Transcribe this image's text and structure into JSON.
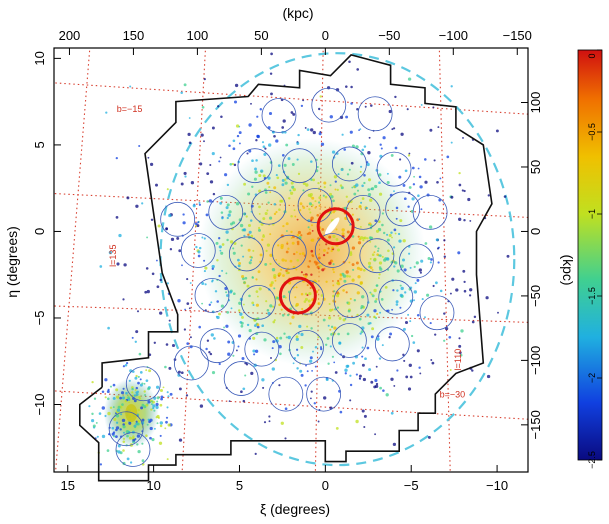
{
  "chart_data": {
    "type": "scatter",
    "top_axis": {
      "label": "(kpc)",
      "ticks": [
        "200",
        "150",
        "100",
        "50",
        "0",
        "−50",
        "−100",
        "−150"
      ],
      "tick_values": [
        200,
        150,
        100,
        50,
        0,
        -50,
        -100,
        -150
      ]
    },
    "bottom_axis": {
      "label": "ξ (degrees)",
      "ticks": [
        "15",
        "10",
        "5",
        "0",
        "−5",
        "−10"
      ],
      "tick_values": [
        15,
        10,
        5,
        0,
        -5,
        -10
      ],
      "xlim": [
        15.8,
        -11.8
      ]
    },
    "left_axis": {
      "label": "η (degrees)",
      "ticks": [
        "10",
        "5",
        "0",
        "−5",
        "−10"
      ],
      "tick_values": [
        10,
        5,
        0,
        -5,
        -10
      ],
      "ylim": [
        -13.9,
        10.6
      ]
    },
    "right_axis": {
      "label": "(kpc)",
      "ticks": [
        "100",
        "50",
        "0",
        "−50",
        "−100",
        "−150"
      ],
      "tick_values": [
        100,
        50,
        0,
        -50,
        -100,
        -150
      ]
    },
    "colorbar": {
      "label": "(kpc)",
      "ticks": [
        "0",
        "−0.5",
        "−1",
        "−1.5",
        "−2",
        "−2.5"
      ],
      "tick_values": [
        0,
        -0.5,
        -1,
        -1.5,
        -2,
        -2.5
      ],
      "range": [
        -2.5,
        0
      ],
      "colors": [
        "#0a0a80",
        "#1040e0",
        "#20b0e0",
        "#40d090",
        "#c0e020",
        "#f0c000",
        "#f07000",
        "#d01010"
      ]
    },
    "grid_labels": [
      "b=−15",
      "b=−30",
      "l=135",
      "l=110"
    ],
    "galactic_grid": "dotted red",
    "footprint_vertices": [
      [
        13,
        -9
      ],
      [
        13,
        -7.6
      ],
      [
        10.3,
        -7.3
      ],
      [
        10.3,
        -5.8
      ],
      [
        8.6,
        -5.8
      ],
      [
        8.6,
        -4.8
      ],
      [
        9.5,
        -2.4
      ],
      [
        10.5,
        4.5
      ],
      [
        8.7,
        6.3
      ],
      [
        8.7,
        7.5
      ],
      [
        4.5,
        7.8
      ],
      [
        3.9,
        8.5
      ],
      [
        1.5,
        8.3
      ],
      [
        1.5,
        9.3
      ],
      [
        -0.3,
        9.0
      ],
      [
        -1.5,
        10.2
      ],
      [
        -3.8,
        9.6
      ],
      [
        -3.8,
        8.5
      ],
      [
        -5.8,
        8.3
      ],
      [
        -5.8,
        7.4
      ],
      [
        -7.6,
        7.2
      ],
      [
        -7.6,
        6.0
      ],
      [
        -9.2,
        5.0
      ],
      [
        -9.7,
        1.6
      ],
      [
        -8.8,
        0.0
      ],
      [
        -8.8,
        -2.5
      ],
      [
        -9.2,
        -7.6
      ],
      [
        -7.6,
        -8.2
      ],
      [
        -6.4,
        -9.4
      ],
      [
        -6.4,
        -10.5
      ],
      [
        -5.4,
        -10.5
      ],
      [
        -5.4,
        -11.5
      ],
      [
        -4.3,
        -11.5
      ],
      [
        -4.3,
        -12.7
      ],
      [
        -1.2,
        -12.7
      ],
      [
        -1.2,
        -13.3
      ],
      [
        0,
        -13.3
      ],
      [
        0,
        -12.1
      ],
      [
        5.5,
        -12.1
      ],
      [
        5.5,
        -12.9
      ],
      [
        8.7,
        -12.9
      ],
      [
        8.7,
        -13.5
      ],
      [
        10.3,
        -13.5
      ],
      [
        10.3,
        -14.4
      ],
      [
        13.2,
        -14.4
      ],
      [
        13.2,
        -12.2
      ],
      [
        14.3,
        -11.2
      ],
      [
        14.3,
        -10.0
      ],
      [
        13,
        -9
      ]
    ],
    "fields": [
      [
        2.7,
        6.7
      ],
      [
        -0.2,
        7.3
      ],
      [
        -2.9,
        6.8
      ],
      [
        4.1,
        3.8
      ],
      [
        1.5,
        3.8
      ],
      [
        -1.4,
        3.9
      ],
      [
        -4.0,
        3.6
      ],
      [
        8.6,
        0.7
      ],
      [
        5.8,
        1.1
      ],
      [
        3.3,
        1.4
      ],
      [
        0.6,
        1.5
      ],
      [
        -2.2,
        1.1
      ],
      [
        -4.5,
        1.3
      ],
      [
        -6.1,
        1.1
      ],
      [
        7.4,
        -1.1
      ],
      [
        4.6,
        -1.3
      ],
      [
        2.1,
        -1.2
      ],
      [
        -0.4,
        -1.1
      ],
      [
        -3.0,
        -1.4
      ],
      [
        -5.3,
        -1.7
      ],
      [
        6.6,
        -3.7
      ],
      [
        3.9,
        -4.1
      ],
      [
        1.1,
        -3.8
      ],
      [
        -1.5,
        -4.0
      ],
      [
        -4.1,
        -3.8
      ],
      [
        -6.5,
        -4.7
      ],
      [
        6.3,
        -6.6
      ],
      [
        3.7,
        -6.8
      ],
      [
        1.1,
        -6.7
      ],
      [
        -1.4,
        -6.3
      ],
      [
        -3.9,
        -6.5
      ],
      [
        7.8,
        -7.6
      ],
      [
        4.9,
        -8.5
      ],
      [
        2.3,
        -9.4
      ],
      [
        0.1,
        -9.4
      ],
      [
        10.6,
        -8.8
      ],
      [
        11.6,
        -11.4
      ],
      [
        11.2,
        -12.6
      ]
    ],
    "highlighted_fields": [
      [
        -0.6,
        0.3
      ],
      [
        1.6,
        -3.7
      ]
    ],
    "galaxies": [
      {
        "xi": -0.4,
        "eta": 0.3,
        "color": "#ffffff"
      },
      {
        "xi": 11.3,
        "eta": -10.5,
        "color": "#c8c820"
      }
    ]
  }
}
